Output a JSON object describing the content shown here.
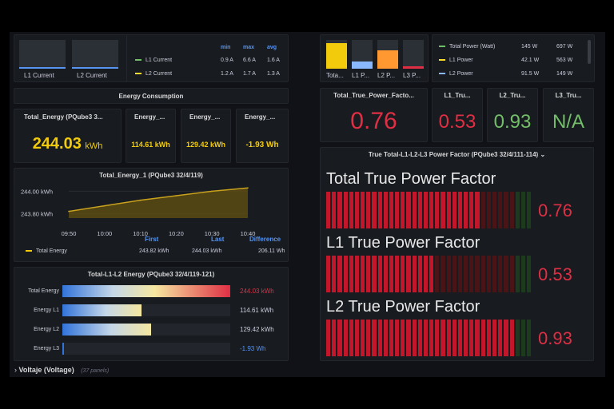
{
  "top_left_current": {
    "l1_label": "L1 Current",
    "l2_label": "L2 Current"
  },
  "current_legend": {
    "headers": [
      "min",
      "max",
      "avg"
    ],
    "rows": [
      {
        "name": "L1 Current",
        "color": "#73bf69",
        "min": "0.9 A",
        "max": "6.6 A",
        "avg": "1.6 A"
      },
      {
        "name": "L2 Current",
        "color": "#fade2a",
        "min": "1.2 A",
        "max": "1.7 A",
        "avg": "1.3 A"
      }
    ]
  },
  "power_bars": {
    "labels": [
      "Tota...",
      "L1 P...",
      "L2 P...",
      "L3 P..."
    ],
    "colors": [
      "#f2cc0c",
      "#8ab8ff",
      "#ff9830",
      "#e02f44"
    ],
    "levels": [
      0.9,
      0.25,
      0.65,
      0.08
    ]
  },
  "power_legend": {
    "rows": [
      {
        "name": "Total Power (Watt)",
        "color": "#73bf69",
        "v1": "145 W",
        "v2": "697 W"
      },
      {
        "name": "L1 Power",
        "color": "#fade2a",
        "v1": "42.1 W",
        "v2": "563 W"
      },
      {
        "name": "L2 Power",
        "color": "#8ab8ff",
        "v1": "91.5 W",
        "v2": "149 W"
      }
    ]
  },
  "energy_section": {
    "title": "Energy Consumption"
  },
  "energy_stats": [
    {
      "title": "Total_Energy (PQube3 3...",
      "value": "244.03",
      "unit": "kWh",
      "color": "#f2cc0c"
    },
    {
      "title": "Energy_...",
      "value": "114.61 kWh",
      "color": "#f2cc0c"
    },
    {
      "title": "Energy_...",
      "value": "129.42 kWh",
      "color": "#f2cc0c"
    },
    {
      "title": "Energy_...",
      "value": "-1.93 Wh",
      "color": "#f2cc0c"
    }
  ],
  "pf_stats": [
    {
      "title": "Total_True_Power_Facto...",
      "value": "0.76",
      "color": "#e02f44"
    },
    {
      "title": "L1_Tru...",
      "value": "0.53",
      "color": "#e02f44"
    },
    {
      "title": "L2_Tru...",
      "value": "0.93",
      "color": "#73bf69"
    },
    {
      "title": "L3_Tru...",
      "value": "N/A",
      "color": "#73bf69"
    }
  ],
  "chart_data": {
    "type": "area",
    "title": "Total_Energy_1 (PQube3 32/4/119)",
    "x": [
      "09:50",
      "10:00",
      "10:10",
      "10:20",
      "10:30",
      "10:40"
    ],
    "series": [
      {
        "name": "Total Energy",
        "color": "#c8a11d",
        "values": [
          243.82,
          243.87,
          243.92,
          243.96,
          244.0,
          244.03
        ]
      }
    ],
    "yticks": [
      "244.00 kWh",
      "243.80 kWh"
    ],
    "ylim": [
      243.76,
      244.06
    ],
    "legend": {
      "headers": [
        "First",
        "Last",
        "Difference"
      ],
      "row": {
        "name": "Total Energy",
        "first": "243.82 kWh",
        "last": "244.03 kWh",
        "difference": "206.11 Wh"
      }
    }
  },
  "bar_gauge": {
    "title": "Total-L1-L2 Energy (PQube3 32/4/119-121)",
    "rows": [
      {
        "label": "Total Energy",
        "fraction": 1.0,
        "value": "244.03 kWh",
        "color": "#e02f44"
      },
      {
        "label": "Energy L1",
        "fraction": 0.47,
        "value": "114.61 kWh",
        "color": "#ccccdc"
      },
      {
        "label": "Energy L2",
        "fraction": 0.53,
        "value": "129.42 kWh",
        "color": "#ccccdc"
      },
      {
        "label": "Energy L3",
        "fraction": 0.0,
        "value": "-1.93 Wh",
        "color": "#5794f2"
      }
    ]
  },
  "pf_panel": {
    "title": "True Total-L1-L2-L3 Power Factor (PQube3 32/4/111-114)",
    "chevron": "⌄",
    "rows": [
      {
        "label": "Total True Power Factor",
        "value": "0.76",
        "fill": 0.76
      },
      {
        "label": "L1 True Power Factor",
        "value": "0.53",
        "fill": 0.53
      },
      {
        "label": "L2 True Power Factor",
        "value": "0.93",
        "fill": 0.93
      }
    ]
  },
  "footer_row": {
    "chevron": "›",
    "title": "Voltaje (Voltage)",
    "count": "(37 panels)"
  }
}
